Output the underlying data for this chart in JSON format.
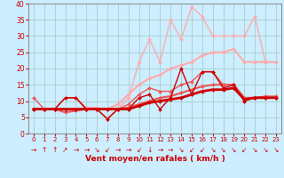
{
  "xlabel": "Vent moyen/en rafales ( km/h )",
  "background_color": "#cceeff",
  "grid_color": "#aacccc",
  "xlim": [
    -0.5,
    23.5
  ],
  "ylim": [
    0,
    40
  ],
  "yticks": [
    0,
    5,
    10,
    15,
    20,
    25,
    30,
    35,
    40
  ],
  "xticks": [
    0,
    1,
    2,
    3,
    4,
    5,
    6,
    7,
    8,
    9,
    10,
    11,
    12,
    13,
    14,
    15,
    16,
    17,
    18,
    19,
    20,
    21,
    22,
    23
  ],
  "series": [
    {
      "x": [
        0,
        1,
        2,
        3,
        4,
        5,
        6,
        7,
        8,
        9,
        10,
        11,
        12,
        13,
        14,
        15,
        16,
        17,
        18,
        19,
        20,
        21,
        22,
        23
      ],
      "y": [
        7.5,
        7.5,
        7.5,
        11,
        11,
        7.5,
        7.5,
        4.5,
        7.5,
        7.5,
        11,
        12,
        7.5,
        11,
        20,
        12,
        19,
        19,
        14,
        15,
        10,
        11,
        11,
        11
      ],
      "color": "#cc0000",
      "lw": 1.0,
      "marker": "D",
      "ms": 2.0,
      "alpha": 1.0,
      "zorder": 5
    },
    {
      "x": [
        0,
        1,
        2,
        3,
        4,
        5,
        6,
        7,
        8,
        9,
        10,
        11,
        12,
        13,
        14,
        15,
        16,
        17,
        18,
        19,
        20,
        21,
        22,
        23
      ],
      "y": [
        7.5,
        7.5,
        7.5,
        7.5,
        7.5,
        7.5,
        7.5,
        7.5,
        7.5,
        7.5,
        8.5,
        9.5,
        10,
        10.5,
        11,
        12,
        13,
        13.5,
        13.5,
        14,
        10.5,
        11,
        11,
        11
      ],
      "color": "#cc0000",
      "lw": 2.0,
      "marker": "D",
      "ms": 2.0,
      "alpha": 1.0,
      "zorder": 6
    },
    {
      "x": [
        0,
        1,
        2,
        3,
        4,
        5,
        6,
        7,
        8,
        9,
        10,
        11,
        12,
        13,
        14,
        15,
        16,
        17,
        18,
        19,
        20,
        21,
        22,
        23
      ],
      "y": [
        11,
        7.5,
        7.5,
        11,
        11,
        7.5,
        7.5,
        4.5,
        7.5,
        9,
        12,
        14,
        13,
        13,
        15,
        16,
        19,
        19,
        15,
        15,
        10,
        11,
        11.5,
        11.5
      ],
      "color": "#ee5555",
      "lw": 1.0,
      "marker": "D",
      "ms": 2.0,
      "alpha": 1.0,
      "zorder": 4
    },
    {
      "x": [
        0,
        1,
        2,
        3,
        4,
        5,
        6,
        7,
        8,
        9,
        10,
        11,
        12,
        13,
        14,
        15,
        16,
        17,
        18,
        19,
        20,
        21,
        22,
        23
      ],
      "y": [
        7.5,
        7.5,
        7.5,
        6.5,
        7,
        7.5,
        7.5,
        7.5,
        7.5,
        8,
        9,
        10,
        11,
        11.5,
        12.5,
        13.5,
        14.5,
        15,
        15,
        15,
        11,
        11,
        11,
        11
      ],
      "color": "#ee5555",
      "lw": 1.5,
      "marker": "D",
      "ms": 2.0,
      "alpha": 1.0,
      "zorder": 4
    },
    {
      "x": [
        0,
        1,
        2,
        3,
        4,
        5,
        6,
        7,
        8,
        9,
        10,
        11,
        12,
        13,
        14,
        15,
        16,
        17,
        18,
        19,
        20,
        21,
        22,
        23
      ],
      "y": [
        7.5,
        7.5,
        7.5,
        11,
        11,
        8,
        8,
        7.5,
        7.5,
        11,
        22,
        29,
        22,
        35,
        29,
        39,
        36,
        30,
        30,
        30,
        30,
        36,
        22,
        22
      ],
      "color": "#ffaaaa",
      "lw": 1.0,
      "marker": "D",
      "ms": 2.0,
      "alpha": 1.0,
      "zorder": 2
    },
    {
      "x": [
        0,
        1,
        2,
        3,
        4,
        5,
        6,
        7,
        8,
        9,
        10,
        11,
        12,
        13,
        14,
        15,
        16,
        17,
        18,
        19,
        20,
        21,
        22,
        23
      ],
      "y": [
        7.5,
        7.5,
        7.5,
        7.5,
        7.5,
        7.5,
        7.5,
        7.5,
        9,
        12,
        15,
        17,
        18,
        20,
        21,
        22,
        24,
        25,
        25,
        26,
        22,
        22,
        22,
        22
      ],
      "color": "#ffaaaa",
      "lw": 1.5,
      "marker": "D",
      "ms": 2.0,
      "alpha": 1.0,
      "zorder": 2
    }
  ],
  "wind_arrows": [
    "→",
    "↑",
    "↑",
    "↗",
    "→",
    "→",
    "↘",
    "↙",
    "→",
    "→",
    "↙",
    "↓",
    "→",
    "→",
    "↘",
    "↙",
    "↙",
    "↘",
    "↘",
    "↘",
    "↙",
    "↘",
    "↘",
    "↘"
  ],
  "arrow_fontsize": 5.5
}
